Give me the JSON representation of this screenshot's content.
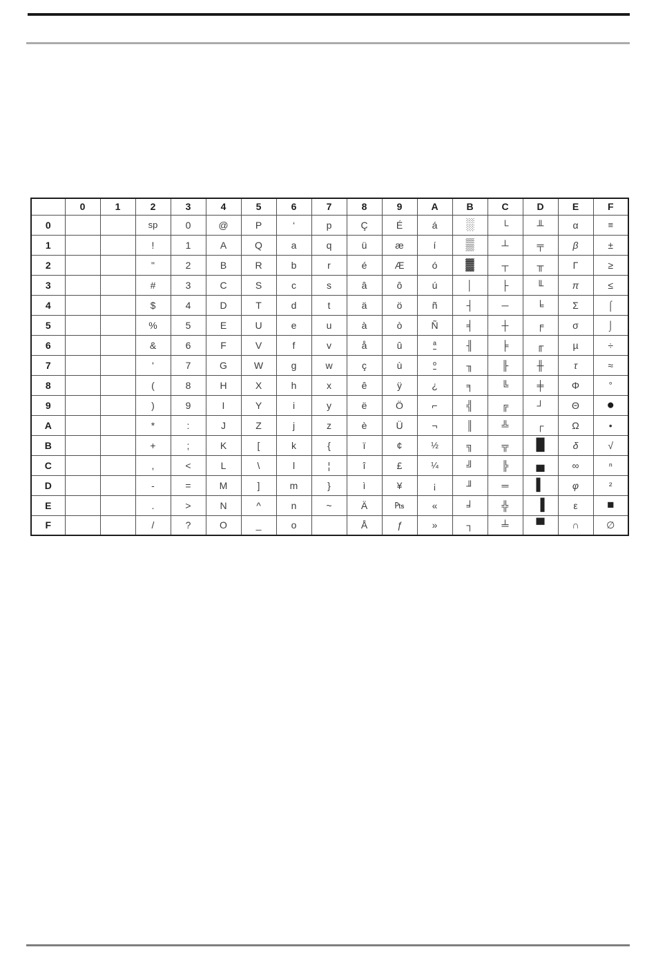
{
  "page": {
    "background": "#ffffff"
  },
  "rules": {
    "top_primary_color": "#161616",
    "top_secondary_color": "#ababab",
    "bottom_color": "#7e7e7e"
  },
  "table": {
    "corner_label": "",
    "col_headers": [
      "0",
      "1",
      "2",
      "3",
      "4",
      "5",
      "6",
      "7",
      "8",
      "9",
      "A",
      "B",
      "C",
      "D",
      "E",
      "F"
    ],
    "row_headers": [
      "0",
      "1",
      "2",
      "3",
      "4",
      "5",
      "6",
      "7",
      "8",
      "9",
      "A",
      "B",
      "C",
      "D",
      "E",
      "F"
    ],
    "rows": [
      [
        "",
        "",
        "sp",
        "0",
        "@",
        "P",
        "‘",
        "p",
        "Ç",
        "É",
        "á",
        "░",
        "└",
        "╨",
        "α",
        "≡"
      ],
      [
        "",
        "",
        "!",
        "1",
        "A",
        "Q",
        "a",
        "q",
        "ü",
        "æ",
        "í",
        "▒",
        "┴",
        "╤",
        "β",
        "±"
      ],
      [
        "",
        "",
        "\"",
        "2",
        "B",
        "R",
        "b",
        "r",
        "é",
        "Æ",
        "ó",
        "▓",
        "┬",
        "╥",
        "Γ",
        "≥"
      ],
      [
        "",
        "",
        "#",
        "3",
        "C",
        "S",
        "c",
        "s",
        "â",
        "ô",
        "ú",
        "│",
        "├",
        "╙",
        "π",
        "≤"
      ],
      [
        "",
        "",
        "$",
        "4",
        "D",
        "T",
        "d",
        "t",
        "ä",
        "ö",
        "ñ",
        "┤",
        "─",
        "╘",
        "Σ",
        "⌠"
      ],
      [
        "",
        "",
        "%",
        "5",
        "E",
        "U",
        "e",
        "u",
        "à",
        "ò",
        "Ñ",
        "╡",
        "┼",
        "╒",
        "σ",
        "⌡"
      ],
      [
        "",
        "",
        "&",
        "6",
        "F",
        "V",
        "f",
        "v",
        "å",
        "û",
        "ª",
        "╢",
        "╞",
        "╓",
        "µ",
        "÷"
      ],
      [
        "",
        "",
        "'",
        "7",
        "G",
        "W",
        "g",
        "w",
        "ç",
        "ù",
        "º",
        "╖",
        "╟",
        "╫",
        "τ",
        "≈"
      ],
      [
        "",
        "",
        "(",
        "8",
        "H",
        "X",
        "h",
        "x",
        "ê",
        "ÿ",
        "¿",
        "╕",
        "╚",
        "╪",
        "Φ",
        "°"
      ],
      [
        "",
        "",
        ")",
        "9",
        "I",
        "Y",
        "i",
        "y",
        "ë",
        "Ö",
        "⌐",
        "╣",
        "╔",
        "┘",
        "Θ",
        "●"
      ],
      [
        "",
        "",
        "*",
        ":",
        "J",
        "Z",
        "j",
        "z",
        "è",
        "Ü",
        "¬",
        "║",
        "╩",
        "┌",
        "Ω",
        "•"
      ],
      [
        "",
        "",
        "+",
        ";",
        "K",
        "[",
        "k",
        "{",
        "ï",
        "¢",
        "½",
        "╗",
        "╦",
        "█",
        "δ",
        "√"
      ],
      [
        "",
        "",
        ",",
        "<",
        "L",
        "\\",
        "l",
        "¦",
        "î",
        "£",
        "¼",
        "╝",
        "╠",
        "▄",
        "∞",
        "ⁿ"
      ],
      [
        "",
        "",
        "-",
        "=",
        "M",
        "]",
        "m",
        "}",
        "ì",
        "¥",
        "¡",
        "╜",
        "═",
        "▌",
        "φ",
        "²"
      ],
      [
        "",
        "",
        ".",
        ">",
        "N",
        "^",
        "n",
        "~",
        "Ä",
        "₧",
        "«",
        "╛",
        "╬",
        "▐",
        "ε",
        "■"
      ],
      [
        "",
        "",
        "/",
        "?",
        "O",
        "_",
        "o",
        "",
        "Å",
        "ƒ",
        "»",
        "┐",
        "╧",
        "▀",
        "∩",
        "∅"
      ]
    ],
    "style_hints": {
      "italic_chars": [
        "β",
        "π",
        "τ",
        "δ",
        "φ",
        "ƒ",
        "∅"
      ],
      "ordinal_chars": [
        "ª",
        "º"
      ],
      "small_chars": [
        "sp",
        "½",
        "¼",
        "₧",
        "≡",
        "°",
        "⁞"
      ],
      "big_dot_chars": [
        "●"
      ],
      "block_chars": [
        "█",
        "▄",
        "▌",
        "▐",
        "▀",
        "░",
        "▒",
        "▓",
        "■"
      ]
    }
  }
}
